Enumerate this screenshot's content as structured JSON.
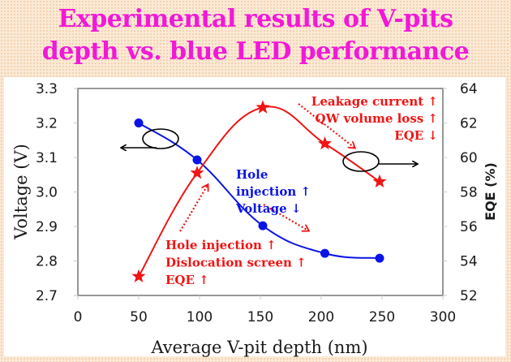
{
  "title_lines": [
    "Experimental results of V-pits",
    "depth vs. blue LED performance"
  ],
  "colors": {
    "title": "#f218d8",
    "voltage_series": "#0a14e6",
    "eqe_series": "#f01414",
    "axis": "#7f7f7f",
    "text": "#1a1a1a",
    "background": "#fbe9d6"
  },
  "chart_data": {
    "type": "line",
    "title": "Experimental results of V-pits depth vs. blue LED performance",
    "xlabel": "Average V-pit depth (nm)",
    "ylabel": "Voltage (V)",
    "y2label": "EQE (%)",
    "xlim": [
      0,
      300
    ],
    "ylim": [
      2.7,
      3.3
    ],
    "y2lim": [
      52,
      64
    ],
    "xticks": [
      "0",
      "50",
      "100",
      "150",
      "200",
      "250",
      "300"
    ],
    "xtick_values": [
      0,
      50,
      100,
      150,
      200,
      250,
      300
    ],
    "yticks": [
      "2.7",
      "2.8",
      "2.9",
      "3.0",
      "3.1",
      "3.2",
      "3.3"
    ],
    "ytick_values": [
      2.7,
      2.8,
      2.9,
      3.0,
      3.1,
      3.2,
      3.3
    ],
    "y2ticks": [
      "52",
      "54",
      "56",
      "58",
      "60",
      "62",
      "64"
    ],
    "y2tick_values": [
      52,
      54,
      56,
      58,
      60,
      62,
      64
    ],
    "grid": false,
    "series": [
      {
        "name": "Voltage",
        "axis": "left",
        "marker": "circle",
        "color": "#0a14e6",
        "x": [
          50,
          98,
          152,
          203,
          248
        ],
        "values": [
          3.2,
          3.093,
          2.902,
          2.822,
          2.808
        ]
      },
      {
        "name": "EQE",
        "axis": "right",
        "marker": "star",
        "color": "#f01414",
        "x": [
          50,
          98,
          152,
          203,
          248
        ],
        "values": [
          53.1,
          59.1,
          62.9,
          60.8,
          58.6
        ]
      }
    ],
    "annotations": [
      {
        "id": "leakage",
        "color": "#f01414",
        "align": "right",
        "lines": [
          "Leakage current ↑",
          "QW volume loss ↑",
          "EQE ↓"
        ]
      },
      {
        "id": "hole-dislocation",
        "color": "#f01414",
        "align": "left",
        "lines": [
          "Hole injection ↑",
          "Dislocation screen ↑",
          "EQE ↑"
        ]
      },
      {
        "id": "hole-voltage",
        "color": "#0a14e6",
        "align": "left",
        "lines": [
          "Hole",
          "injection ↑",
          "Voltage ↓"
        ]
      }
    ],
    "callouts": [
      {
        "target": "Voltage",
        "points_to": "left axis"
      },
      {
        "target": "EQE",
        "points_to": "right axis"
      }
    ]
  }
}
